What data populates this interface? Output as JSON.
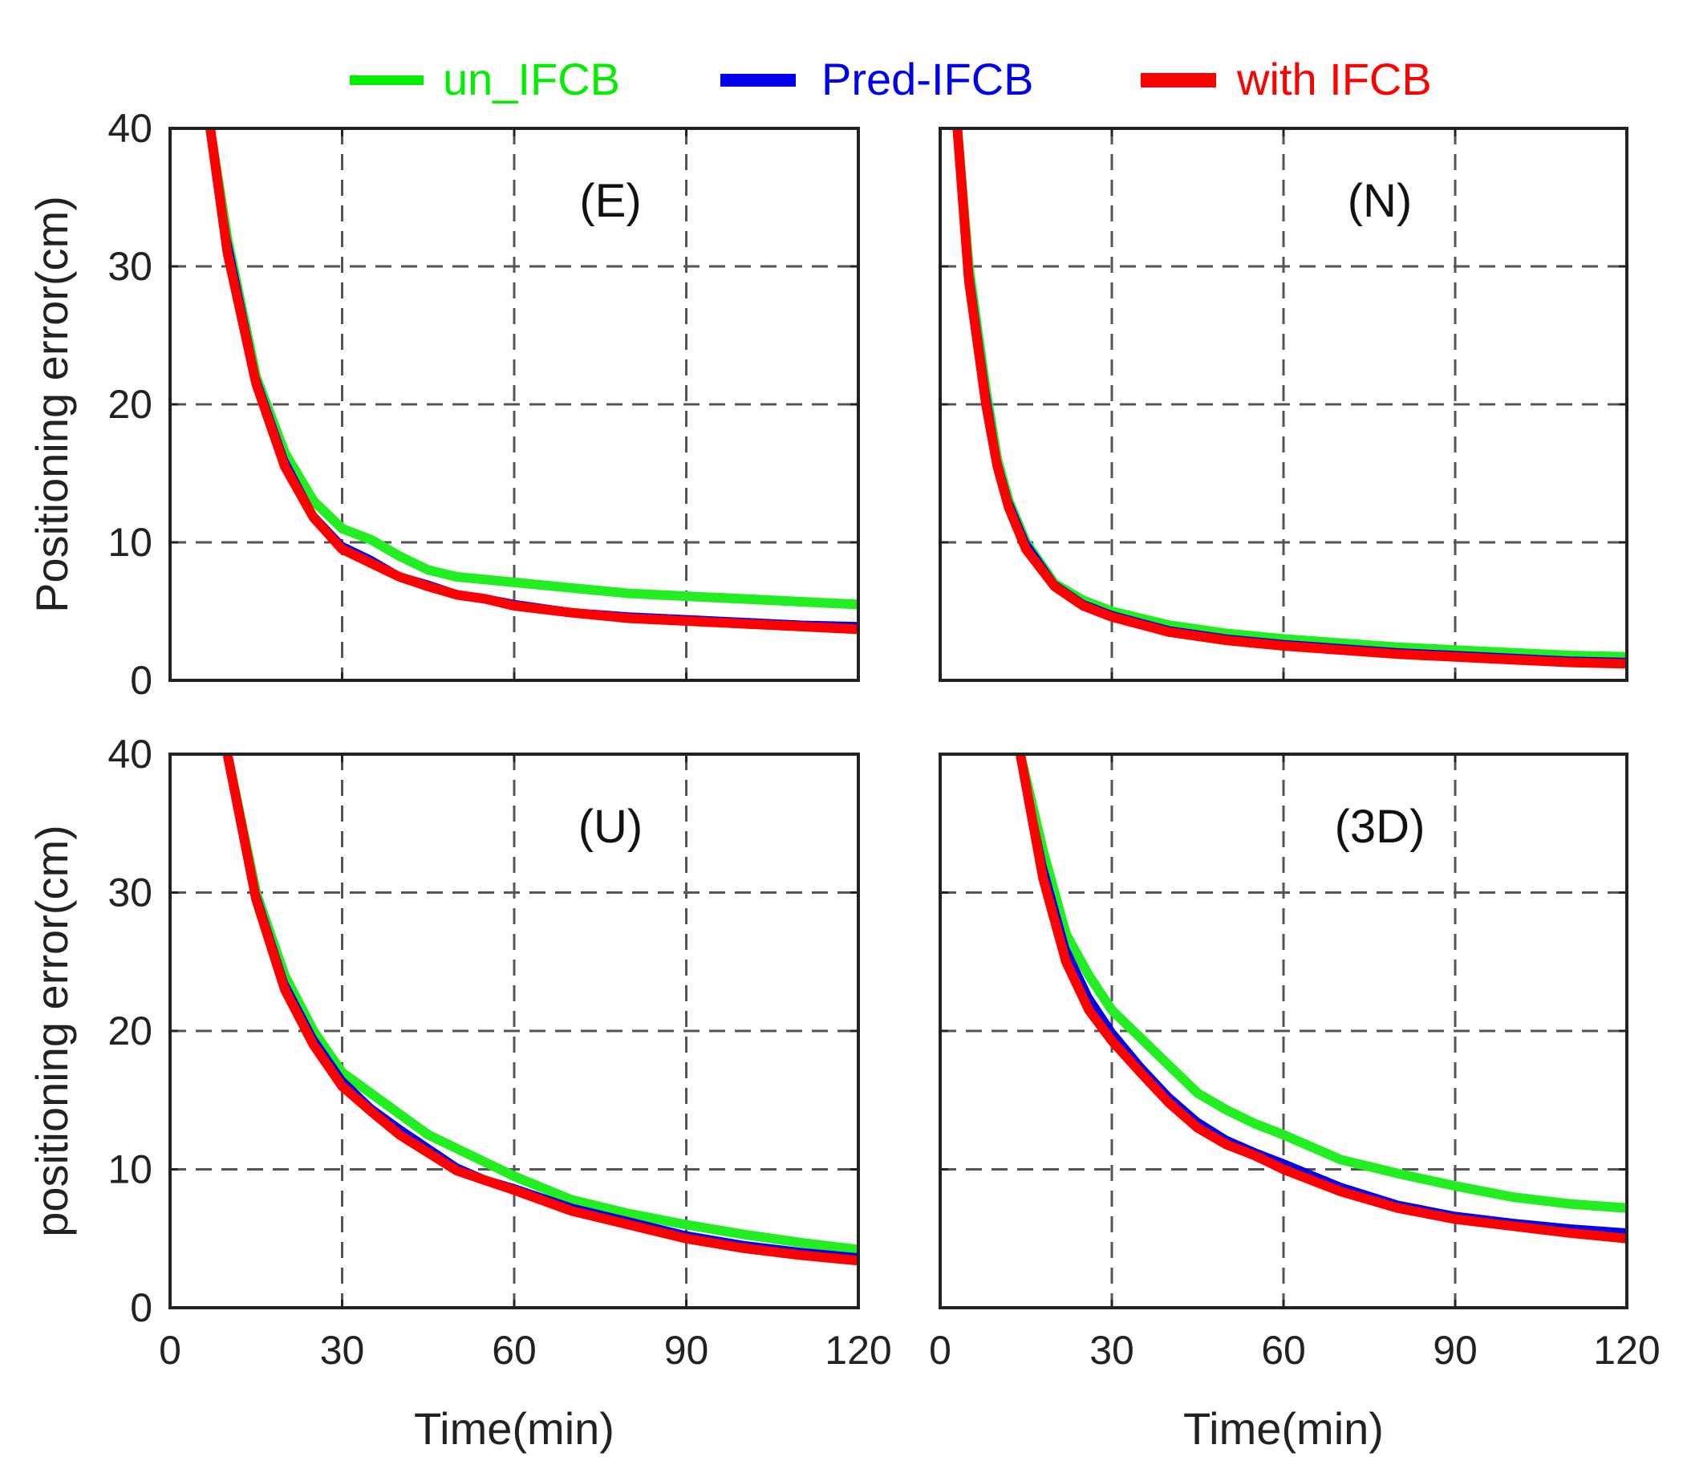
{
  "chart_data": [
    {
      "type": "line",
      "panel": "(E)",
      "title": "(E)",
      "xlabel": "",
      "ylabel": "Positioning error(cm)",
      "xlim": [
        0,
        120
      ],
      "ylim": [
        0,
        40
      ],
      "xticks": [
        0,
        30,
        60,
        90,
        120
      ],
      "yticks": [
        0,
        10,
        20,
        30,
        40
      ],
      "grid": true,
      "x": [
        0,
        7,
        10,
        15,
        20,
        25,
        30,
        35,
        40,
        45,
        50,
        55,
        60,
        70,
        80,
        90,
        100,
        110,
        120
      ],
      "series": [
        {
          "name": "un_IFCB",
          "values": [
            null,
            40,
            32,
            22,
            16.5,
            13,
            11,
            10.2,
            9,
            8,
            7.5,
            7.3,
            7.1,
            6.7,
            6.3,
            6.1,
            5.9,
            5.7,
            5.5
          ]
        },
        {
          "name": "Pred-IFCB",
          "values": [
            null,
            40,
            32,
            22,
            16,
            12,
            9.8,
            8.8,
            7.6,
            7,
            6.3,
            6,
            5.6,
            5,
            4.7,
            4.5,
            4.3,
            4.1,
            4
          ]
        },
        {
          "name": "with IFCB",
          "values": [
            null,
            40,
            31,
            21.5,
            15.5,
            11.8,
            9.5,
            8.5,
            7.5,
            6.8,
            6.2,
            5.9,
            5.4,
            4.9,
            4.5,
            4.3,
            4.1,
            3.9,
            3.7
          ]
        }
      ]
    },
    {
      "type": "line",
      "panel": "(N)",
      "title": "(N)",
      "xlabel": "",
      "ylabel": "",
      "xlim": [
        0,
        120
      ],
      "ylim": [
        0,
        40
      ],
      "xticks": [
        0,
        30,
        60,
        90,
        120
      ],
      "yticks": [
        0,
        10,
        20,
        30,
        40
      ],
      "grid": true,
      "x": [
        0,
        3,
        5,
        8,
        10,
        12,
        15,
        20,
        25,
        30,
        40,
        50,
        60,
        70,
        80,
        90,
        100,
        110,
        120
      ],
      "series": [
        {
          "name": "un_IFCB",
          "values": [
            null,
            40,
            30,
            21,
            16,
            13,
            10,
            7,
            5.8,
            5,
            4,
            3.4,
            3,
            2.7,
            2.4,
            2.2,
            2,
            1.8,
            1.7
          ]
        },
        {
          "name": "Pred-IFCB",
          "values": [
            null,
            40,
            30,
            21,
            16,
            13,
            10,
            7,
            5.6,
            4.8,
            3.7,
            3.1,
            2.7,
            2.4,
            2.1,
            1.9,
            1.7,
            1.5,
            1.4
          ]
        },
        {
          "name": "with IFCB",
          "values": [
            null,
            40,
            29,
            20,
            15.5,
            12.5,
            9.5,
            6.8,
            5.4,
            4.6,
            3.5,
            2.9,
            2.5,
            2.2,
            1.9,
            1.7,
            1.5,
            1.3,
            1.2
          ]
        }
      ]
    },
    {
      "type": "line",
      "panel": "(U)",
      "title": "(U)",
      "xlabel": "Time(min)",
      "ylabel": "positioning error(cm)",
      "xlim": [
        0,
        120
      ],
      "ylim": [
        0,
        40
      ],
      "xticks": [
        0,
        30,
        60,
        90,
        120
      ],
      "yticks": [
        0,
        10,
        20,
        30,
        40
      ],
      "grid": true,
      "x": [
        0,
        10,
        15,
        20,
        25,
        30,
        35,
        40,
        45,
        50,
        55,
        60,
        70,
        80,
        90,
        100,
        110,
        120
      ],
      "series": [
        {
          "name": "un_IFCB",
          "values": [
            null,
            40,
            30,
            24,
            20,
            17,
            15.5,
            14,
            12.5,
            11.5,
            10.5,
            9.5,
            7.8,
            6.8,
            6,
            5.3,
            4.7,
            4.2
          ]
        },
        {
          "name": "Pred-IFCB",
          "values": [
            null,
            40,
            30,
            23.5,
            19.5,
            16.5,
            14.5,
            13,
            11.6,
            10.2,
            9.3,
            8.7,
            7.3,
            6.3,
            5.3,
            4.6,
            4.1,
            3.7
          ]
        },
        {
          "name": "with IFCB",
          "values": [
            null,
            40,
            29.5,
            23,
            19,
            16,
            14.2,
            12.5,
            11.2,
            9.9,
            9.2,
            8.5,
            7,
            6,
            5,
            4.3,
            3.8,
            3.4
          ]
        }
      ]
    },
    {
      "type": "line",
      "panel": "(3D)",
      "title": "(3D)",
      "xlabel": "Time(min)",
      "ylabel": "",
      "xlim": [
        0,
        120
      ],
      "ylim": [
        0,
        40
      ],
      "xticks": [
        0,
        30,
        60,
        90,
        120
      ],
      "yticks": [
        0,
        10,
        20,
        30,
        40
      ],
      "grid": true,
      "x": [
        0,
        14,
        18,
        22,
        26,
        30,
        35,
        40,
        45,
        50,
        55,
        60,
        70,
        80,
        90,
        100,
        110,
        120
      ],
      "series": [
        {
          "name": "un_IFCB",
          "values": [
            null,
            40,
            33,
            27,
            24,
            21.5,
            19.5,
            17.5,
            15.5,
            14.3,
            13.3,
            12.5,
            10.7,
            9.7,
            8.8,
            8,
            7.5,
            7.2
          ]
        },
        {
          "name": "Pred-IFCB",
          "values": [
            null,
            40,
            32,
            26,
            22.5,
            20,
            17.5,
            15.3,
            13.5,
            12.2,
            11.3,
            10.5,
            8.8,
            7.5,
            6.7,
            6.2,
            5.8,
            5.5
          ]
        },
        {
          "name": "with IFCB",
          "values": [
            null,
            40,
            31,
            25,
            21.5,
            19.3,
            17,
            14.8,
            13,
            11.8,
            11,
            10,
            8.4,
            7.2,
            6.4,
            5.9,
            5.4,
            5
          ]
        }
      ]
    }
  ],
  "legend": {
    "placement": "top",
    "items": [
      {
        "label": "un_IFCB",
        "color": "#00ee00"
      },
      {
        "label": "Pred-IFCB",
        "color": "#0000ee"
      },
      {
        "label": "with IFCB",
        "color": "#ff0000"
      }
    ]
  },
  "colors": {
    "un_IFCB": "#22ee22",
    "Pred-IFCB": "#0000ee",
    "with IFCB": "#ff0000"
  }
}
